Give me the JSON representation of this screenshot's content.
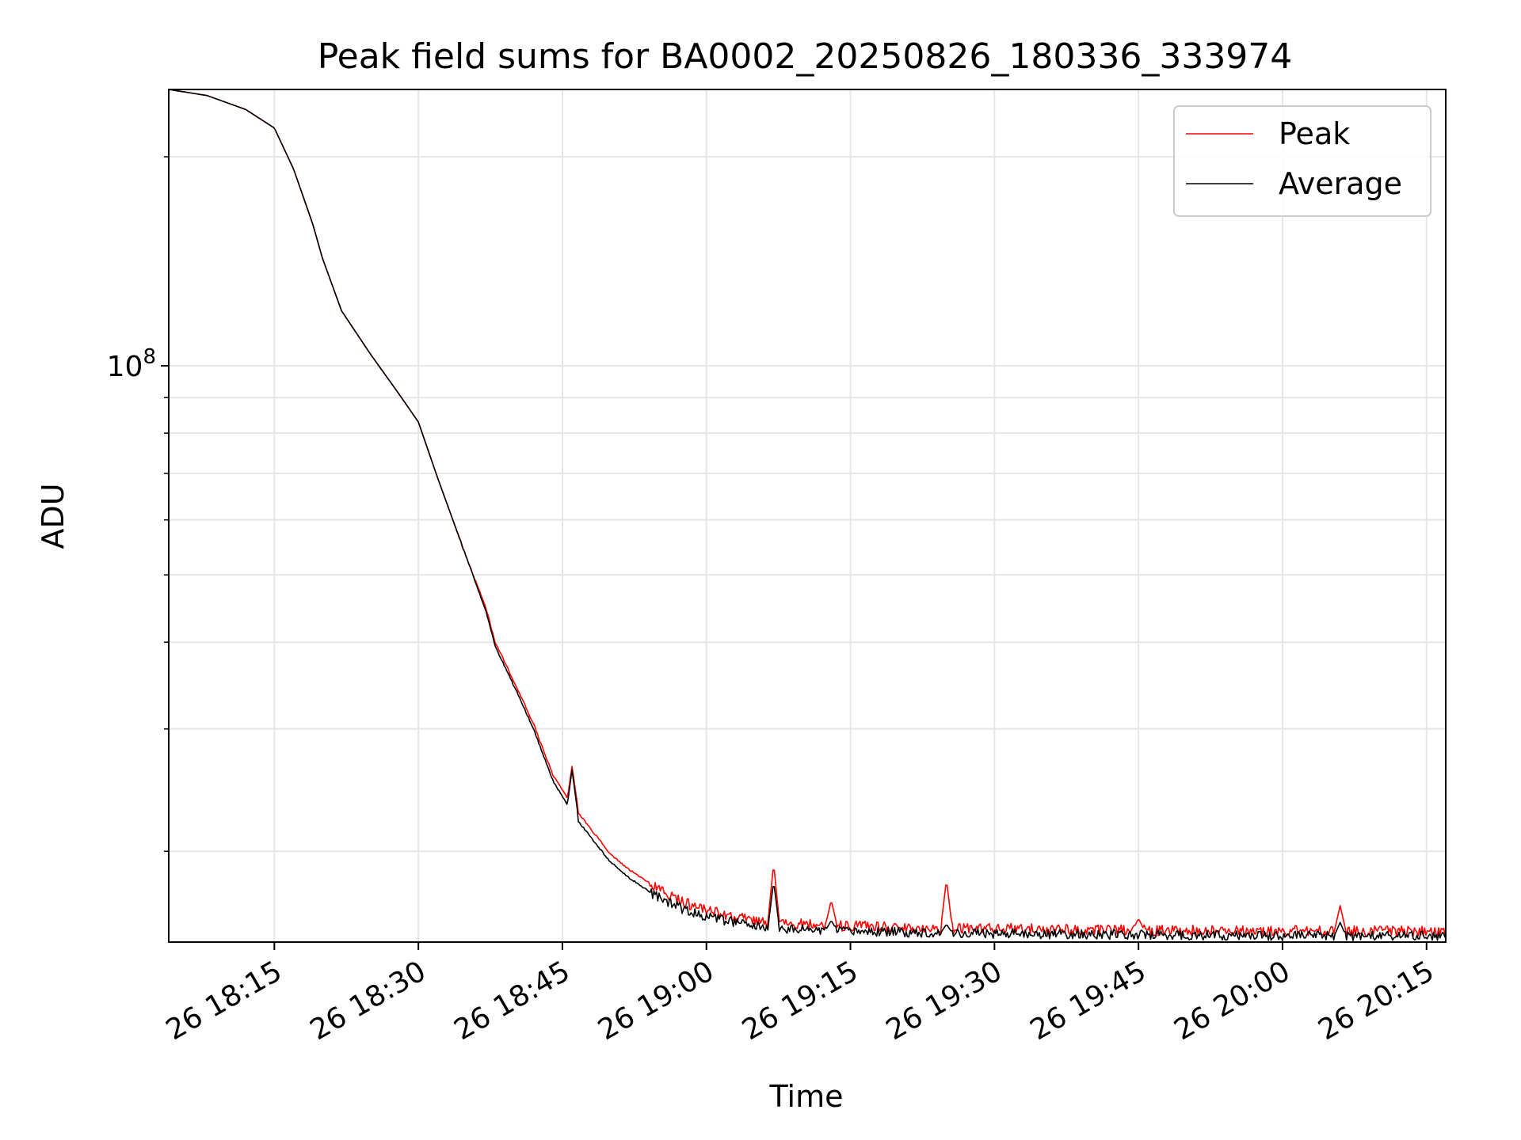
{
  "chart_data": {
    "type": "line",
    "title": "Peak field sums for BA0002_20250826_180336_333974",
    "xlabel": "Time",
    "ylabel": "ADU",
    "yscale": "log",
    "grid": true,
    "legend_position": "top-right",
    "x_tick_labels": [
      "26 18:15",
      "26 18:30",
      "26 18:45",
      "26 19:00",
      "26 19:15",
      "26 19:30",
      "26 19:45",
      "26 20:00",
      "26 20:15"
    ],
    "x_tick_values": [
      "2025-08-26 18:15",
      "2025-08-26 18:30",
      "2025-08-26 18:45",
      "2025-08-26 19:00",
      "2025-08-26 19:15",
      "2025-08-26 19:30",
      "2025-08-26 19:45",
      "2025-08-26 20:00",
      "2025-08-26 20:15"
    ],
    "y_major_tick_value": 100000000,
    "y_major_tick_label": "10",
    "y_major_tick_exponent": "8",
    "y_minor_tick_values": [
      20000000,
      30000000,
      40000000,
      50000000,
      60000000,
      70000000,
      80000000,
      90000000,
      200000000
    ],
    "xlim": [
      "2025-08-26 18:04",
      "2025-08-26 20:17"
    ],
    "ylim": [
      14800000,
      250000000
    ],
    "series": [
      {
        "name": "Peak",
        "color": "#ff0000",
        "x": [
          "2025-08-26 18:04",
          "2025-08-26 18:08",
          "2025-08-26 18:12",
          "2025-08-26 18:15",
          "2025-08-26 18:17",
          "2025-08-26 18:19",
          "2025-08-26 18:20",
          "2025-08-26 18:22",
          "2025-08-26 18:25",
          "2025-08-26 18:28",
          "2025-08-26 18:30",
          "2025-08-26 18:32",
          "2025-08-26 18:35",
          "2025-08-26 18:37",
          "2025-08-26 18:38",
          "2025-08-26 18:40",
          "2025-08-26 18:42",
          "2025-08-26 18:43",
          "2025-08-26 18:44",
          "2025-08-26 18:45",
          "2025-08-26 18:46",
          "2025-08-26 18:47",
          "2025-08-26 18:48",
          "2025-08-26 18:50",
          "2025-08-26 18:52",
          "2025-08-26 18:54",
          "2025-08-26 18:56",
          "2025-08-26 18:58",
          "2025-08-26 19:00",
          "2025-08-26 19:03",
          "2025-08-26 19:05",
          "2025-08-26 19:07",
          "2025-08-26 19:10",
          "2025-08-26 19:13",
          "2025-08-26 19:15",
          "2025-08-26 19:20",
          "2025-08-26 19:25",
          "2025-08-26 19:30",
          "2025-08-26 19:35",
          "2025-08-26 19:40",
          "2025-08-26 19:45",
          "2025-08-26 19:50",
          "2025-08-26 19:55",
          "2025-08-26 20:00",
          "2025-08-26 20:05",
          "2025-08-26 20:10",
          "2025-08-26 20:17"
        ],
        "y": [
          250000000,
          245000000,
          234000000,
          220000000,
          192000000,
          160000000,
          143000000,
          120000000,
          104000000,
          91000000,
          83000000,
          69000000,
          53000000,
          45000000,
          40000000,
          35000000,
          30500000,
          28000000,
          25800000,
          24500000,
          23200000,
          22400000,
          21500000,
          19800000,
          18800000,
          18000000,
          17300000,
          16800000,
          16500000,
          16100000,
          15900000,
          15800000,
          15700000,
          15650000,
          15600000,
          15550000,
          15500000,
          15480000,
          15450000,
          15420000,
          15400000,
          15380000,
          15370000,
          15360000,
          15350000,
          15340000,
          15330000
        ],
        "spikes": [
          {
            "x": "2025-08-26 18:46",
            "y": 26500000
          },
          {
            "x": "2025-08-26 19:07",
            "y": 19200000
          },
          {
            "x": "2025-08-26 19:13",
            "y": 17000000
          },
          {
            "x": "2025-08-26 19:25",
            "y": 18200000
          },
          {
            "x": "2025-08-26 19:45",
            "y": 16000000
          },
          {
            "x": "2025-08-26 20:06",
            "y": 16700000
          }
        ]
      },
      {
        "name": "Average",
        "color": "#000000",
        "x": [
          "2025-08-26 18:04",
          "2025-08-26 18:08",
          "2025-08-26 18:12",
          "2025-08-26 18:15",
          "2025-08-26 18:17",
          "2025-08-26 18:19",
          "2025-08-26 18:20",
          "2025-08-26 18:22",
          "2025-08-26 18:25",
          "2025-08-26 18:28",
          "2025-08-26 18:30",
          "2025-08-26 18:32",
          "2025-08-26 18:35",
          "2025-08-26 18:37",
          "2025-08-26 18:38",
          "2025-08-26 18:40",
          "2025-08-26 18:42",
          "2025-08-26 18:43",
          "2025-08-26 18:44",
          "2025-08-26 18:45",
          "2025-08-26 18:46",
          "2025-08-26 18:47",
          "2025-08-26 18:48",
          "2025-08-26 18:50",
          "2025-08-26 18:52",
          "2025-08-26 18:54",
          "2025-08-26 18:56",
          "2025-08-26 18:58",
          "2025-08-26 19:00",
          "2025-08-26 19:03",
          "2025-08-26 19:05",
          "2025-08-26 19:07",
          "2025-08-26 19:10",
          "2025-08-26 19:13",
          "2025-08-26 19:15",
          "2025-08-26 19:20",
          "2025-08-26 19:25",
          "2025-08-26 19:30",
          "2025-08-26 19:35",
          "2025-08-26 19:40",
          "2025-08-26 19:45",
          "2025-08-26 19:50",
          "2025-08-26 19:55",
          "2025-08-26 20:00",
          "2025-08-26 20:05",
          "2025-08-26 20:10",
          "2025-08-26 20:17"
        ],
        "y": [
          250000000,
          245000000,
          234000000,
          220000000,
          192000000,
          160000000,
          143000000,
          120000000,
          104000000,
          91000000,
          83000000,
          69000000,
          53000000,
          44500000,
          39500000,
          34500000,
          30000000,
          27500000,
          25300000,
          24000000,
          22700000,
          21800000,
          20900000,
          19300000,
          18300000,
          17500000,
          16900000,
          16400000,
          16100000,
          15800000,
          15600000,
          15500000,
          15420000,
          15380000,
          15340000,
          15300000,
          15260000,
          15230000,
          15200000,
          15180000,
          15160000,
          15140000,
          15130000,
          15120000,
          15110000,
          15100000,
          15100000
        ],
        "spikes": [
          {
            "x": "2025-08-26 18:46",
            "y": 26200000
          },
          {
            "x": "2025-08-26 19:07",
            "y": 18100000
          },
          {
            "x": "2025-08-26 19:13",
            "y": 15900000
          },
          {
            "x": "2025-08-26 19:25",
            "y": 15700000
          },
          {
            "x": "2025-08-26 20:06",
            "y": 15800000
          }
        ]
      }
    ]
  }
}
